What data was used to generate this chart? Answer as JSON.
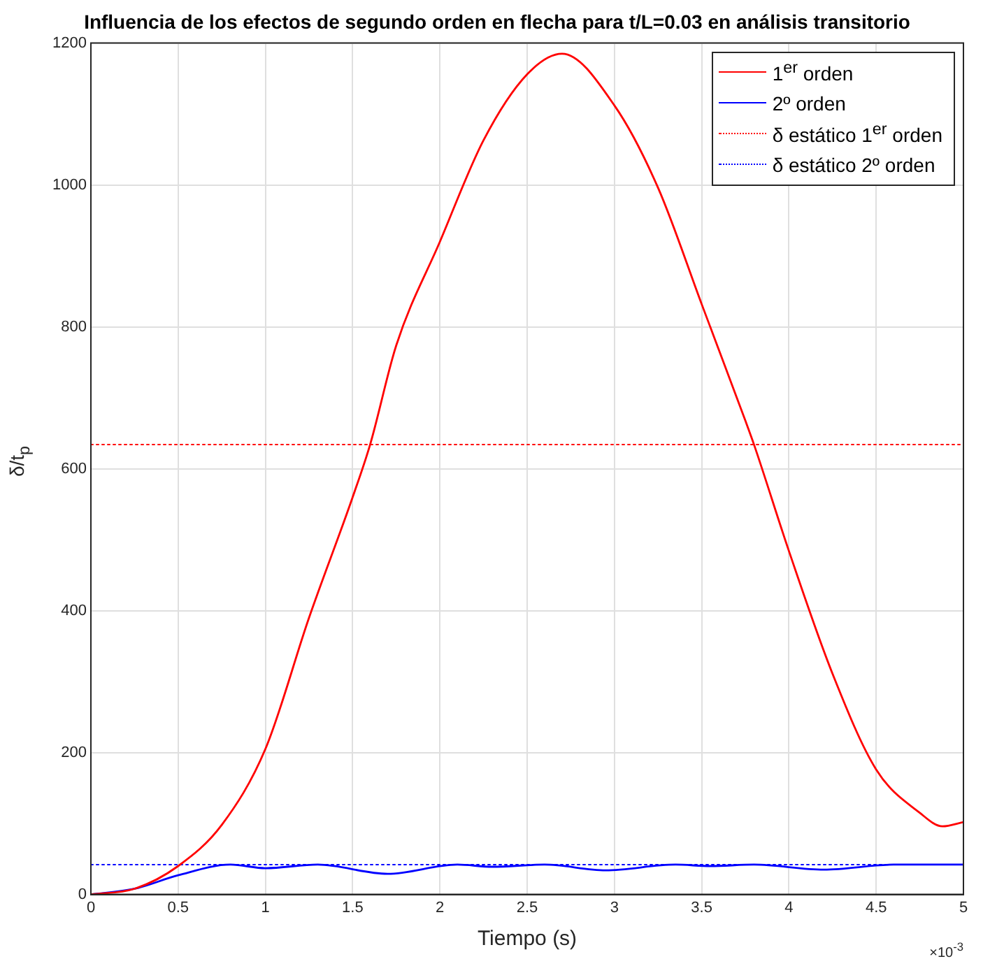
{
  "chart_data": {
    "type": "line",
    "title": "Influencia de los efectos de segundo orden en flecha para t/L=0.03 en análisis transitorio",
    "xlabel": "Tiempo (s)",
    "ylabel": "δ/t$_{p}$",
    "annotations": [
      "×10$^{-3}$"
    ],
    "xlim": [
      0,
      5
    ],
    "xticks": [
      0,
      0.5,
      1,
      1.5,
      2,
      2.5,
      3,
      3.5,
      4,
      4.5,
      5
    ],
    "ylim": [
      0,
      1200
    ],
    "yticks": [
      0,
      200,
      400,
      600,
      800,
      1000,
      1200
    ],
    "grid": true,
    "legend": "top right",
    "marker": "none",
    "series": [
      {
        "name": "1$^{er}$ orden",
        "color": "#ff0000",
        "line_style": "solid",
        "x": [
          0,
          0.25,
          0.5,
          0.75,
          1,
          1.25,
          1.5,
          1.6,
          1.75,
          2,
          2.25,
          2.5,
          2.7,
          3,
          3.25,
          3.5,
          3.75,
          3.8,
          4,
          4.25,
          4.5,
          4.75,
          4.88,
          5
        ],
        "values": [
          0,
          8,
          40,
          98,
          205,
          390,
          560,
          634,
          774,
          920,
          1063,
          1156,
          1185,
          1112,
          996,
          832,
          668,
          634,
          484,
          311,
          176,
          115,
          96,
          102
        ]
      },
      {
        "name": "2º orden",
        "color": "#0000ff",
        "line_style": "solid",
        "x": [
          0,
          0.25,
          0.5,
          0.8,
          1,
          1.3,
          1.7,
          2.1,
          2.3,
          2.6,
          2.95,
          3.35,
          3.55,
          3.8,
          4.2,
          4.6,
          5
        ],
        "values": [
          0,
          8,
          27,
          42,
          37,
          42,
          29,
          42,
          39,
          42,
          34,
          42,
          40,
          42,
          35,
          42,
          42
        ]
      },
      {
        "name": "δ estático 1$^{er}$ orden",
        "color": "#ff0000",
        "line_style": "dotted",
        "x": [
          0,
          5
        ],
        "values": [
          634,
          634
        ]
      },
      {
        "name": "δ estático 2º orden",
        "color": "#0000ff",
        "line_style": "dotted",
        "x": [
          0,
          5
        ],
        "values": [
          42,
          42
        ]
      }
    ]
  }
}
